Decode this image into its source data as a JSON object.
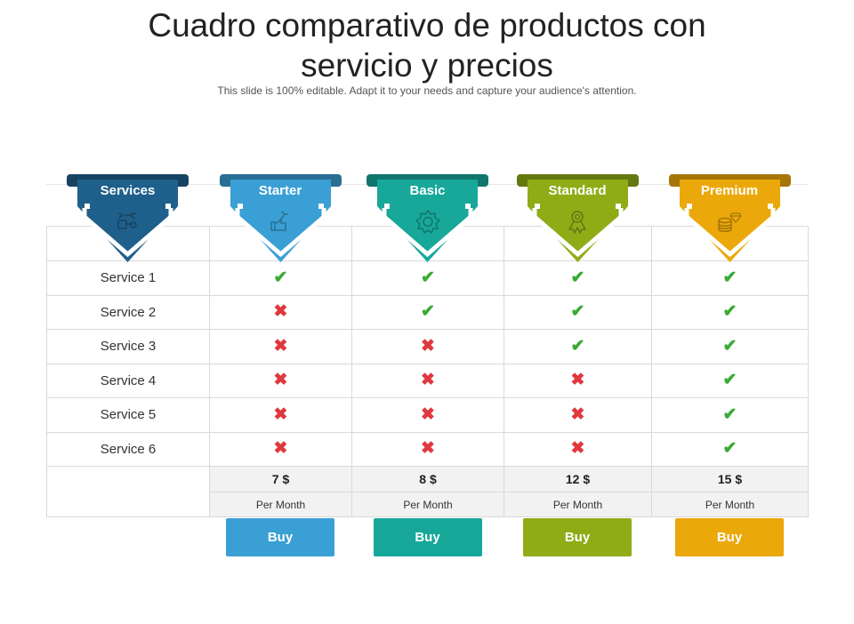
{
  "slide": {
    "title_line1": "Cuadro comparativo de productos con",
    "title_line2": "servicio y precios",
    "subtitle": "This slide is 100% editable. Adapt it to your needs and capture your audience's attention."
  },
  "header": {
    "services_label": "Services",
    "services_color": "#1f5f8b",
    "services_icon": "tools-icon"
  },
  "plans": [
    {
      "name": "Starter",
      "color": "#3a9fd4",
      "icon": "thumbs-up-wrench-icon",
      "price": "7 $",
      "period": "Per Month",
      "buy_label": "Buy"
    },
    {
      "name": "Basic",
      "color": "#17a89a",
      "icon": "gear-badge-icon",
      "price": "8 $",
      "period": "Per Month",
      "buy_label": "Buy"
    },
    {
      "name": "Standard",
      "color": "#8fac17",
      "icon": "award-ribbon-icon",
      "price": "12 $",
      "period": "Per Month",
      "buy_label": "Buy"
    },
    {
      "name": "Premium",
      "color": "#eba80a",
      "icon": "coins-diamond-icon",
      "price": "15 $",
      "period": "Per Month",
      "buy_label": "Buy"
    }
  ],
  "services": [
    {
      "name": "Service 1",
      "included": [
        true,
        true,
        true,
        true
      ]
    },
    {
      "name": "Service 2",
      "included": [
        false,
        true,
        true,
        true
      ]
    },
    {
      "name": "Service 3",
      "included": [
        false,
        false,
        true,
        true
      ]
    },
    {
      "name": "Service 4",
      "included": [
        false,
        false,
        false,
        true
      ]
    },
    {
      "name": "Service 5",
      "included": [
        false,
        false,
        false,
        true
      ]
    },
    {
      "name": "Service 6",
      "included": [
        false,
        false,
        false,
        true
      ]
    }
  ],
  "marks": {
    "check_color": "#3aaa35",
    "cross_color": "#e0383e"
  }
}
